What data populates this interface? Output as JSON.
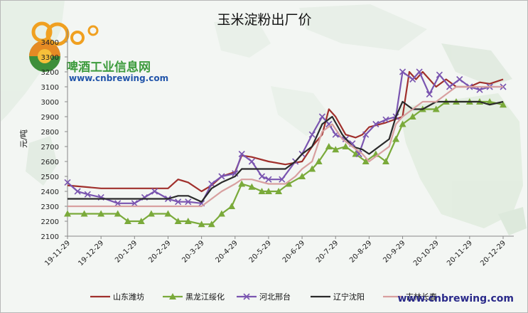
{
  "brand": {
    "name_cn": "啤酒工业信息网",
    "url": "www.cnbrewing.com",
    "watermark": "www.cnbrewing.com",
    "colors": {
      "green": "#3d9b3d",
      "blue": "#2255aa",
      "orange": "#f0a020"
    }
  },
  "chart_data": {
    "type": "line",
    "title": "玉米淀粉出厂价",
    "ylabel": "元/吨",
    "xlabel": "",
    "ylim": [
      2100,
      3400
    ],
    "yticks": [
      2100,
      2200,
      2300,
      2400,
      2500,
      2600,
      2700,
      2800,
      2900,
      3000,
      3100,
      3200,
      3300,
      3400
    ],
    "xticks": [
      "19-11-29",
      "19-12-29",
      "20-1-29",
      "20-2-29",
      "20-3-29",
      "20-4-29",
      "20-5-29",
      "20-6-29",
      "20-7-29",
      "20-8-29",
      "20-9-29",
      "20-10-29",
      "20-11-29",
      "20-12-29"
    ],
    "grid": false,
    "legend_position": "bottom",
    "series": [
      {
        "name": "山东潍坊",
        "color": "#a0302c",
        "marker": "none",
        "points": [
          [
            0,
            2440
          ],
          [
            1,
            2420
          ],
          [
            2,
            2420
          ],
          [
            3,
            2420
          ],
          [
            3.3,
            2480
          ],
          [
            3.6,
            2460
          ],
          [
            4,
            2400
          ],
          [
            4.3,
            2440
          ],
          [
            4.6,
            2500
          ],
          [
            5,
            2530
          ],
          [
            5.2,
            2640
          ],
          [
            5.5,
            2630
          ],
          [
            6,
            2600
          ],
          [
            6.5,
            2580
          ],
          [
            7,
            2600
          ],
          [
            7.3,
            2700
          ],
          [
            7.6,
            2780
          ],
          [
            7.8,
            2950
          ],
          [
            8,
            2900
          ],
          [
            8.3,
            2780
          ],
          [
            8.6,
            2760
          ],
          [
            8.8,
            2780
          ],
          [
            9,
            2830
          ],
          [
            9.5,
            2860
          ],
          [
            10,
            2900
          ],
          [
            10.2,
            3200
          ],
          [
            10.4,
            3150
          ],
          [
            10.6,
            3200
          ],
          [
            11,
            3100
          ],
          [
            11.3,
            3150
          ],
          [
            11.6,
            3100
          ],
          [
            12,
            3100
          ],
          [
            12.3,
            3130
          ],
          [
            12.6,
            3120
          ],
          [
            13,
            3150
          ]
        ]
      },
      {
        "name": "黑龙江绥化",
        "color": "#7aaa3a",
        "marker": "triangle",
        "points": [
          [
            0,
            2250
          ],
          [
            0.5,
            2250
          ],
          [
            1,
            2250
          ],
          [
            1.5,
            2250
          ],
          [
            1.8,
            2200
          ],
          [
            2.2,
            2200
          ],
          [
            2.5,
            2250
          ],
          [
            3,
            2250
          ],
          [
            3.3,
            2200
          ],
          [
            3.6,
            2200
          ],
          [
            4,
            2180
          ],
          [
            4.3,
            2180
          ],
          [
            4.6,
            2250
          ],
          [
            4.9,
            2300
          ],
          [
            5.2,
            2450
          ],
          [
            5.5,
            2430
          ],
          [
            5.8,
            2400
          ],
          [
            6,
            2400
          ],
          [
            6.3,
            2400
          ],
          [
            6.6,
            2450
          ],
          [
            7,
            2500
          ],
          [
            7.3,
            2550
          ],
          [
            7.5,
            2600
          ],
          [
            7.8,
            2700
          ],
          [
            8,
            2680
          ],
          [
            8.3,
            2700
          ],
          [
            8.6,
            2650
          ],
          [
            8.9,
            2600
          ],
          [
            9.2,
            2650
          ],
          [
            9.5,
            2600
          ],
          [
            9.8,
            2750
          ],
          [
            10,
            2850
          ],
          [
            10.3,
            2900
          ],
          [
            10.6,
            2950
          ],
          [
            11,
            2950
          ],
          [
            11.3,
            3000
          ],
          [
            11.6,
            3000
          ],
          [
            12,
            3000
          ],
          [
            12.3,
            3000
          ],
          [
            12.6,
            3000
          ],
          [
            13,
            2980
          ]
        ]
      },
      {
        "name": "河北邢台",
        "color": "#7a55b0",
        "marker": "x",
        "points": [
          [
            0,
            2460
          ],
          [
            0.3,
            2400
          ],
          [
            0.6,
            2380
          ],
          [
            1,
            2360
          ],
          [
            1.5,
            2320
          ],
          [
            2,
            2320
          ],
          [
            2.3,
            2360
          ],
          [
            2.6,
            2400
          ],
          [
            3,
            2350
          ],
          [
            3.3,
            2330
          ],
          [
            3.6,
            2330
          ],
          [
            4,
            2320
          ],
          [
            4.3,
            2450
          ],
          [
            4.6,
            2500
          ],
          [
            5,
            2520
          ],
          [
            5.2,
            2650
          ],
          [
            5.5,
            2600
          ],
          [
            5.8,
            2500
          ],
          [
            6,
            2480
          ],
          [
            6.4,
            2480
          ],
          [
            6.8,
            2600
          ],
          [
            7,
            2650
          ],
          [
            7.3,
            2780
          ],
          [
            7.6,
            2900
          ],
          [
            7.8,
            2850
          ],
          [
            8,
            2780
          ],
          [
            8.3,
            2750
          ],
          [
            8.5,
            2720
          ],
          [
            8.7,
            2650
          ],
          [
            8.9,
            2780
          ],
          [
            9.2,
            2850
          ],
          [
            9.5,
            2880
          ],
          [
            9.8,
            2900
          ],
          [
            10,
            3200
          ],
          [
            10.3,
            3150
          ],
          [
            10.5,
            3200
          ],
          [
            10.8,
            3050
          ],
          [
            11.1,
            3180
          ],
          [
            11.4,
            3100
          ],
          [
            11.7,
            3150
          ],
          [
            12,
            3100
          ],
          [
            12.3,
            3080
          ],
          [
            12.6,
            3100
          ],
          [
            13,
            3100
          ]
        ]
      },
      {
        "name": "辽宁沈阳",
        "color": "#2a2a2a",
        "marker": "none",
        "points": [
          [
            0,
            2350
          ],
          [
            1,
            2350
          ],
          [
            2,
            2350
          ],
          [
            3,
            2350
          ],
          [
            3.3,
            2370
          ],
          [
            3.6,
            2370
          ],
          [
            4,
            2330
          ],
          [
            4.3,
            2420
          ],
          [
            4.6,
            2460
          ],
          [
            5,
            2500
          ],
          [
            5.2,
            2550
          ],
          [
            5.5,
            2550
          ],
          [
            6,
            2550
          ],
          [
            6.5,
            2550
          ],
          [
            6.8,
            2600
          ],
          [
            7,
            2650
          ],
          [
            7.3,
            2700
          ],
          [
            7.6,
            2850
          ],
          [
            7.9,
            2900
          ],
          [
            8.2,
            2780
          ],
          [
            8.5,
            2700
          ],
          [
            8.8,
            2680
          ],
          [
            9,
            2650
          ],
          [
            9.3,
            2700
          ],
          [
            9.6,
            2750
          ],
          [
            9.8,
            2900
          ],
          [
            10,
            3000
          ],
          [
            10.3,
            2950
          ],
          [
            10.6,
            2950
          ],
          [
            11,
            3000
          ],
          [
            11.3,
            3000
          ],
          [
            11.6,
            3000
          ],
          [
            12,
            3000
          ],
          [
            12.3,
            3000
          ],
          [
            12.6,
            2980
          ],
          [
            13,
            3000
          ]
        ]
      },
      {
        "name": "吉林长春",
        "color": "#d8a0a0",
        "marker": "none",
        "points": [
          [
            0,
            2300
          ],
          [
            1,
            2300
          ],
          [
            2,
            2300
          ],
          [
            3,
            2300
          ],
          [
            3.3,
            2300
          ],
          [
            3.6,
            2300
          ],
          [
            4,
            2300
          ],
          [
            4.3,
            2350
          ],
          [
            4.6,
            2400
          ],
          [
            5,
            2450
          ],
          [
            5.2,
            2480
          ],
          [
            5.5,
            2480
          ],
          [
            6,
            2450
          ],
          [
            6.5,
            2450
          ],
          [
            6.8,
            2500
          ],
          [
            7,
            2550
          ],
          [
            7.3,
            2600
          ],
          [
            7.6,
            2800
          ],
          [
            7.9,
            2850
          ],
          [
            8.2,
            2750
          ],
          [
            8.5,
            2700
          ],
          [
            8.8,
            2650
          ],
          [
            9,
            2600
          ],
          [
            9.3,
            2650
          ],
          [
            9.6,
            2700
          ],
          [
            9.8,
            2850
          ],
          [
            10,
            2900
          ],
          [
            10.3,
            2950
          ],
          [
            10.6,
            3000
          ],
          [
            11,
            3000
          ],
          [
            11.3,
            3050
          ],
          [
            11.6,
            3100
          ],
          [
            12,
            3100
          ],
          [
            12.3,
            3100
          ],
          [
            12.6,
            3100
          ],
          [
            13,
            3100
          ]
        ]
      }
    ]
  }
}
